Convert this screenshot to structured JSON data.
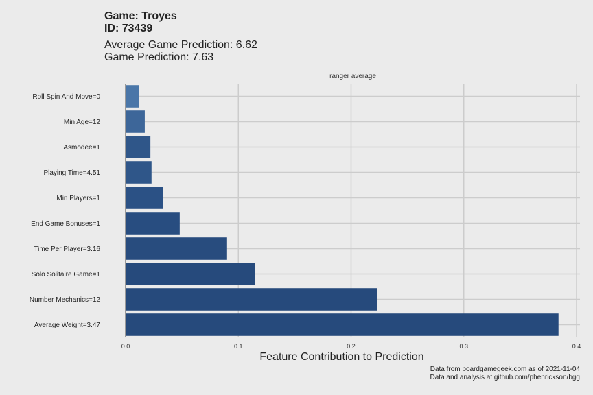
{
  "header": {
    "title_line1": "Game: Troyes",
    "title_line2": "ID: 73439",
    "subtitle_line1": "Average Game Prediction: 6.62",
    "subtitle_line2": "Game Prediction: 7.63"
  },
  "facet_label": "ranger average",
  "caption": {
    "line1": "Data from boardgamegeek.com as of 2021-11-04",
    "line2": "Data and analysis at github.com/phenrickson/bgg"
  },
  "chart_data": {
    "type": "bar",
    "orientation": "horizontal",
    "title": "",
    "xlabel": "Feature Contribution to Prediction",
    "ylabel": "",
    "xlim": [
      0,
      0.4
    ],
    "xticks": [
      "0.0",
      "0.1",
      "0.2",
      "0.3",
      "0.4"
    ],
    "grid": true,
    "categories": [
      "Roll Spin And Move=0",
      "Min Age=12",
      "Asmodee=1",
      "Playing Time=4.51",
      "Min Players=1",
      "End Game Bonuses=1",
      "Time Per Player=3.16",
      "Solo Solitaire Game=1",
      "Number Mechanics=12",
      "Average Weight=3.47"
    ],
    "values": [
      0.012,
      0.017,
      0.022,
      0.023,
      0.033,
      0.048,
      0.09,
      0.115,
      0.223,
      0.384
    ],
    "colors": [
      "#4a76a8",
      "#3d6699",
      "#2f5689",
      "#2f5689",
      "#2b5185",
      "#284d80",
      "#284c7e",
      "#264a7c",
      "#264a7c",
      "#264a7c"
    ],
    "gridline_color": "#cccccc"
  }
}
